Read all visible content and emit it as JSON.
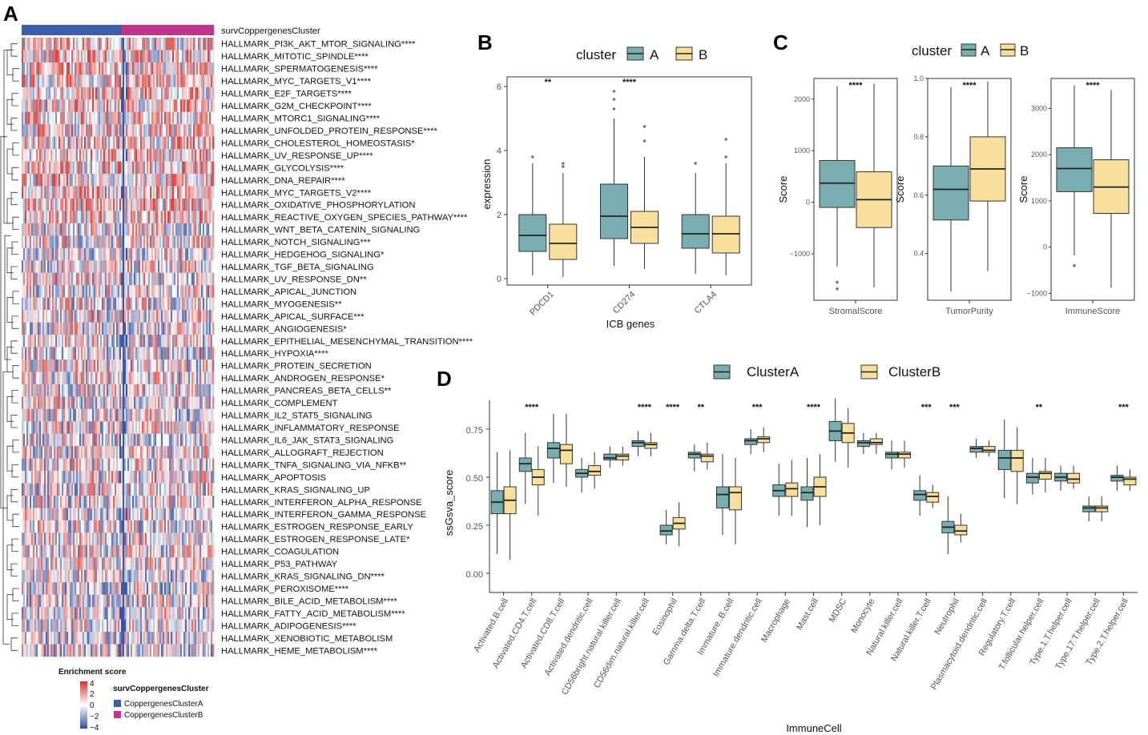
{
  "colors": {
    "clusterA": "#79aeb1",
    "clusterB": "#f8df9e",
    "heatA": "#3e5dab",
    "heatB": "#c2348c",
    "heatHigh": "#d7312a",
    "heatLow": "#2f4da0",
    "boxStroke": "#333333"
  },
  "panel_labels": {
    "a": "A",
    "b": "B",
    "c": "C",
    "d": "D"
  },
  "heatmap": {
    "annotation_label": "survCoppergenesCluster",
    "legend": {
      "title": "Enrichment score",
      "ticks": [
        "4",
        "2",
        "0",
        "−2",
        "−4"
      ],
      "cluster_title": "survCoppergenesCluster",
      "cluster_a": "CoppergenesClusterA",
      "cluster_b": "CoppergenesClusterB"
    },
    "rows": [
      "HALLMARK_PI3K_AKT_MTOR_SIGNALING****",
      "HALLMARK_MITOTIC_SPINDLE****",
      "HALLMARK_SPERMATOGENESIS****",
      "HALLMARK_MYC_TARGETS_V1****",
      "HALLMARK_E2F_TARGETS****",
      "HALLMARK_G2M_CHECKPOINT****",
      "HALLMARK_MTORC1_SIGNALING****",
      "HALLMARK_UNFOLDED_PROTEIN_RESPONSE****",
      "HALLMARK_CHOLESTEROL_HOMEOSTASIS*",
      "HALLMARK_UV_RESPONSE_UP****",
      "HALLMARK_GLYCOLYSIS****",
      "HALLMARK_DNA_REPAIR****",
      "HALLMARK_MYC_TARGETS_V2****",
      "HALLMARK_OXIDATIVE_PHOSPHORYLATION",
      "HALLMARK_REACTIVE_OXYGEN_SPECIES_PATHWAY****",
      "HALLMARK_WNT_BETA_CATENIN_SIGNALING",
      "HALLMARK_NOTCH_SIGNALING***",
      "HALLMARK_HEDGEHOG_SIGNALING*",
      "HALLMARK_TGF_BETA_SIGNALING",
      "HALLMARK_UV_RESPONSE_DN**",
      "HALLMARK_APICAL_JUNCTION",
      "HALLMARK_MYOGENESIS**",
      "HALLMARK_APICAL_SURFACE***",
      "HALLMARK_ANGIOGENESIS*",
      "HALLMARK_EPITHELIAL_MESENCHYMAL_TRANSITION****",
      "HALLMARK_HYPOXIA****",
      "HALLMARK_PROTEIN_SECRETION",
      "HALLMARK_ANDROGEN_RESPONSE*",
      "HALLMARK_PANCREAS_BETA_CELLS**",
      "HALLMARK_COMPLEMENT",
      "HALLMARK_IL2_STAT5_SIGNALING",
      "HALLMARK_INFLAMMATORY_RESPONSE",
      "HALLMARK_IL6_JAK_STAT3_SIGNALING",
      "HALLMARK_ALLOGRAFT_REJECTION",
      "HALLMARK_TNFA_SIGNALING_VIA_NFKB**",
      "HALLMARK_APOPTOSIS",
      "HALLMARK_KRAS_SIGNALING_UP",
      "HALLMARK_INTERFERON_ALPHA_RESPONSE",
      "HALLMARK_INTERFERON_GAMMA_RESPONSE",
      "HALLMARK_ESTROGEN_RESPONSE_EARLY",
      "HALLMARK_ESTROGEN_RESPONSE_LATE*",
      "HALLMARK_COAGULATION",
      "HALLMARK_P53_PATHWAY",
      "HALLMARK_KRAS_SIGNALING_DN****",
      "HALLMARK_PEROXISOME****",
      "HALLMARK_BILE_ACID_METABOLISM****",
      "HALLMARK_FATTY_ACID_METABOLISM****",
      "HALLMARK_ADIPOGENESIS****",
      "HALLMARK_XENOBIOTIC_METABOLISM",
      "HALLMARK_HEME_METABOLISM****"
    ]
  },
  "chart_data": [
    {
      "panel": "B",
      "type": "box",
      "legend_title": "cluster",
      "legend": [
        "A",
        "B"
      ],
      "xlabel": "ICB genes",
      "ylabel": "expression",
      "ylim": [
        -0.2,
        6.3
      ],
      "yticks": [
        0,
        2,
        4,
        6
      ],
      "categories": [
        "PDCD1",
        "CD274",
        "CTLA4"
      ],
      "significance": [
        "**",
        "****",
        ""
      ],
      "series": [
        {
          "name": "A",
          "boxes": [
            {
              "min": 0.1,
              "q1": 0.85,
              "median": 1.35,
              "q3": 2.0,
              "max": 3.6,
              "outliers": [
                3.8
              ]
            },
            {
              "min": 0.4,
              "q1": 1.25,
              "median": 1.95,
              "q3": 2.95,
              "max": 5.0,
              "outliers": [
                5.3,
                5.6,
                5.85
              ]
            },
            {
              "min": 0.15,
              "q1": 0.95,
              "median": 1.4,
              "q3": 2.0,
              "max": 3.3,
              "outliers": [
                3.6
              ]
            }
          ]
        },
        {
          "name": "B",
          "boxes": [
            {
              "min": 0.05,
              "q1": 0.6,
              "median": 1.1,
              "q3": 1.7,
              "max": 3.3,
              "outliers": [
                3.5,
                3.6
              ]
            },
            {
              "min": 0.3,
              "q1": 1.1,
              "median": 1.6,
              "q3": 2.1,
              "max": 3.8,
              "outliers": [
                4.3,
                4.75
              ]
            },
            {
              "min": 0.1,
              "q1": 0.8,
              "median": 1.4,
              "q3": 1.95,
              "max": 3.6,
              "outliers": [
                3.8,
                4.35
              ]
            }
          ]
        }
      ]
    },
    {
      "panel": "C",
      "type": "box",
      "legend_title": "cluster",
      "legend": [
        "A",
        "B"
      ],
      "ylabel": "Score",
      "subplots": [
        {
          "name": "StromalScore",
          "ylim": [
            -1900,
            2400
          ],
          "yticks": [
            -1000,
            0,
            1000,
            2000
          ],
          "significance": "****",
          "A": {
            "min": -1250,
            "q1": -100,
            "median": 370,
            "q3": 810,
            "max": 2250,
            "outliers": [
              -1550,
              -1680
            ]
          },
          "B": {
            "min": -1650,
            "q1": -490,
            "median": 50,
            "q3": 590,
            "max": 2300,
            "outliers": []
          }
        },
        {
          "name": "TumorPurity",
          "ylim": [
            0.24,
            1.0
          ],
          "yticks": [
            0.4,
            0.6,
            0.8,
            1.0
          ],
          "significance": "****",
          "A": {
            "min": 0.27,
            "q1": 0.515,
            "median": 0.62,
            "q3": 0.7,
            "max": 0.97,
            "outliers": []
          },
          "B": {
            "min": 0.34,
            "q1": 0.58,
            "median": 0.69,
            "q3": 0.8,
            "max": 0.99,
            "outliers": []
          }
        },
        {
          "name": "ImmuneScore",
          "ylim": [
            -1150,
            3650
          ],
          "yticks": [
            -1000,
            0,
            1000,
            2000,
            3000
          ],
          "significance": "****",
          "A": {
            "min": -180,
            "q1": 1200,
            "median": 1700,
            "q3": 2150,
            "max": 3500,
            "outliers": [
              -400
            ]
          },
          "B": {
            "min": -880,
            "q1": 730,
            "median": 1300,
            "q3": 1890,
            "max": 3400,
            "outliers": []
          }
        }
      ]
    },
    {
      "panel": "D",
      "type": "box",
      "legend": [
        "ClusterA",
        "ClusterB"
      ],
      "xlabel": "ImmuneCell",
      "ylabel": "ssGsva_score",
      "ylim": [
        -0.1,
        0.9
      ],
      "yticks": [
        0.0,
        0.25,
        0.5,
        0.75
      ],
      "ytick_labels": [
        "0.00",
        "0.25",
        "0.50",
        "0.75"
      ],
      "categories": [
        "Activated.B.cell",
        "Activated.CD4.T.cell",
        "Activated.CD8.T.cell",
        "Activated.dendritic.cell",
        "CD56bright.natural.killer.cell",
        "CD56dim.natural.killer.cell",
        "Eosinophil",
        "Gamma.delta.T.cell",
        "Immature..B.cell",
        "Immature.dendritic.cell",
        "Macrophage",
        "Mast.cell",
        "MDSC",
        "Monocyte",
        "Natural.killer.cell",
        "Natural.killer.T.cell",
        "Neutrophil",
        "Plasmacytoid.dendritic.cell",
        "Regulatory.T.cell",
        "T.follicular.helper.cell",
        "Type.1.T.helper.cell",
        "Type.17.T.helper.cell",
        "Type.2.T.helper.cell"
      ],
      "significance": [
        "",
        "****",
        "",
        "",
        "",
        "****",
        "****",
        "**",
        "",
        "***",
        "",
        "****",
        "",
        "",
        "",
        "***",
        "***",
        "",
        "",
        "**",
        "",
        "",
        "***"
      ],
      "series": [
        {
          "name": "ClusterA",
          "boxes": [
            [
              0.1,
              0.31,
              0.37,
              0.43,
              0.63
            ],
            [
              0.36,
              0.53,
              0.57,
              0.6,
              0.73
            ],
            [
              0.47,
              0.6,
              0.65,
              0.68,
              0.83
            ],
            [
              0.42,
              0.5,
              0.52,
              0.54,
              0.6
            ],
            [
              0.55,
              0.59,
              0.6,
              0.62,
              0.66
            ],
            [
              0.61,
              0.66,
              0.68,
              0.69,
              0.74
            ],
            [
              0.15,
              0.2,
              0.22,
              0.25,
              0.33
            ],
            [
              0.53,
              0.6,
              0.62,
              0.63,
              0.67
            ],
            [
              0.2,
              0.34,
              0.41,
              0.45,
              0.62
            ],
            [
              0.62,
              0.67,
              0.69,
              0.7,
              0.75
            ],
            [
              0.3,
              0.4,
              0.43,
              0.46,
              0.57
            ],
            [
              0.24,
              0.38,
              0.42,
              0.45,
              0.6
            ],
            [
              0.58,
              0.69,
              0.74,
              0.79,
              0.91
            ],
            [
              0.62,
              0.66,
              0.68,
              0.69,
              0.73
            ],
            [
              0.54,
              0.6,
              0.62,
              0.63,
              0.69
            ],
            [
              0.3,
              0.38,
              0.41,
              0.43,
              0.51
            ],
            [
              0.1,
              0.21,
              0.24,
              0.27,
              0.4
            ],
            [
              0.6,
              0.63,
              0.65,
              0.66,
              0.7
            ],
            [
              0.39,
              0.54,
              0.6,
              0.64,
              0.8
            ],
            [
              0.41,
              0.47,
              0.5,
              0.52,
              0.6
            ],
            [
              0.43,
              0.48,
              0.5,
              0.52,
              0.56
            ],
            [
              0.27,
              0.32,
              0.34,
              0.35,
              0.4
            ],
            [
              0.43,
              0.48,
              0.5,
              0.51,
              0.56
            ]
          ]
        },
        {
          "name": "ClusterB",
          "boxes": [
            [
              0.07,
              0.31,
              0.38,
              0.45,
              0.64
            ],
            [
              0.3,
              0.46,
              0.5,
              0.54,
              0.66
            ],
            [
              0.45,
              0.57,
              0.64,
              0.67,
              0.83
            ],
            [
              0.44,
              0.51,
              0.53,
              0.56,
              0.63
            ],
            [
              0.56,
              0.59,
              0.61,
              0.62,
              0.66
            ],
            [
              0.61,
              0.65,
              0.67,
              0.68,
              0.73
            ],
            [
              0.14,
              0.23,
              0.26,
              0.29,
              0.37
            ],
            [
              0.54,
              0.58,
              0.61,
              0.62,
              0.68
            ],
            [
              0.15,
              0.33,
              0.42,
              0.45,
              0.6
            ],
            [
              0.63,
              0.68,
              0.7,
              0.71,
              0.76
            ],
            [
              0.3,
              0.4,
              0.44,
              0.47,
              0.59
            ],
            [
              0.25,
              0.4,
              0.45,
              0.5,
              0.62
            ],
            [
              0.55,
              0.68,
              0.73,
              0.78,
              0.86
            ],
            [
              0.62,
              0.67,
              0.68,
              0.7,
              0.73
            ],
            [
              0.55,
              0.6,
              0.62,
              0.63,
              0.69
            ],
            [
              0.34,
              0.37,
              0.4,
              0.42,
              0.46
            ],
            [
              0.16,
              0.2,
              0.22,
              0.25,
              0.31
            ],
            [
              0.61,
              0.63,
              0.64,
              0.66,
              0.69
            ],
            [
              0.36,
              0.53,
              0.6,
              0.64,
              0.76
            ],
            [
              0.42,
              0.49,
              0.52,
              0.53,
              0.6
            ],
            [
              0.44,
              0.47,
              0.49,
              0.52,
              0.56
            ],
            [
              0.27,
              0.32,
              0.34,
              0.35,
              0.4
            ],
            [
              0.43,
              0.46,
              0.49,
              0.5,
              0.54
            ]
          ]
        }
      ]
    }
  ]
}
